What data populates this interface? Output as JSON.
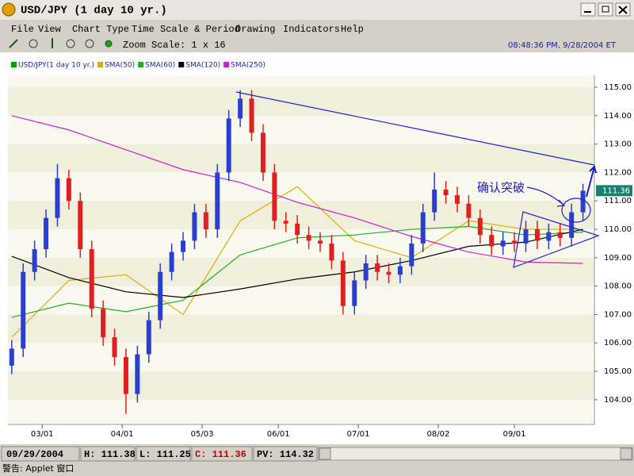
{
  "window": {
    "title": "USD/JPY (1 day  10 yr.)"
  },
  "menu": [
    "File",
    "View",
    "Chart Type",
    "Time Scale & Period",
    "Drawing",
    "Indicators",
    "Help"
  ],
  "toolbar": {
    "zoom": "Zoom Scale: 1 x 16",
    "time": "08:48:36 PM, 9/28/2004 ET"
  },
  "status": {
    "date": "09/29/2004",
    "high": "H: 111.38",
    "low": "L: 111.25",
    "close": "C: 111.36",
    "pv": "PV: 114.32"
  },
  "footer": "警告: Applet 窗口",
  "chart_data": {
    "type": "candlestick",
    "annotation": "确认突破",
    "last_price": 111.36,
    "candles": {
      "name": "USD/JPY(1 day  10 yr.)",
      "color": "#00a000",
      "up_color": "#2a3fd0",
      "down_color": "#e02020",
      "x": [
        1,
        4,
        7,
        10,
        13,
        16,
        19,
        22,
        25,
        28,
        31,
        34,
        37,
        40,
        43,
        46,
        49,
        52,
        55,
        58,
        61,
        64,
        67,
        70,
        73,
        76,
        79,
        82,
        85,
        88,
        91,
        94,
        97,
        100,
        103,
        106,
        109,
        112,
        115,
        118,
        121,
        124,
        127,
        130,
        133,
        136,
        139,
        142,
        145,
        148,
        151
      ],
      "open": [
        105.2,
        105.8,
        108.5,
        109.3,
        110.4,
        111.8,
        111.0,
        109.3,
        107.2,
        106.2,
        105.5,
        104.2,
        105.6,
        106.8,
        108.5,
        109.2,
        109.6,
        110.6,
        110.0,
        112.0,
        113.9,
        114.6,
        113.4,
        112.0,
        110.3,
        110.2,
        109.8,
        109.6,
        109.5,
        108.9,
        107.3,
        108.2,
        108.8,
        108.5,
        108.4,
        108.7,
        109.5,
        110.6,
        111.4,
        111.2,
        110.9,
        110.4,
        109.8,
        109.4,
        109.6,
        109.5,
        110.0,
        109.6,
        109.9,
        109.7,
        110.6
      ],
      "high": [
        106.1,
        108.8,
        109.6,
        110.7,
        112.3,
        112.1,
        111.3,
        109.6,
        107.5,
        106.5,
        105.8,
        105.9,
        107.1,
        108.8,
        109.5,
        109.9,
        110.9,
        110.9,
        112.3,
        114.2,
        114.9,
        114.9,
        113.7,
        112.3,
        110.6,
        110.5,
        110.1,
        109.9,
        109.8,
        109.2,
        108.5,
        109.1,
        109.1,
        108.8,
        109.0,
        109.8,
        110.9,
        112.0,
        111.7,
        111.5,
        111.2,
        110.7,
        110.1,
        109.9,
        109.9,
        110.3,
        110.3,
        110.2,
        110.2,
        110.9,
        111.6
      ],
      "low": [
        104.9,
        105.5,
        108.2,
        109.0,
        110.1,
        110.7,
        109.0,
        106.9,
        105.9,
        105.2,
        103.5,
        103.9,
        105.3,
        106.5,
        108.2,
        108.9,
        109.3,
        109.7,
        109.7,
        111.7,
        113.6,
        113.1,
        111.7,
        110.0,
        109.9,
        109.5,
        109.3,
        109.2,
        108.6,
        107.0,
        107.0,
        107.9,
        108.2,
        108.1,
        108.1,
        108.4,
        109.2,
        110.3,
        110.9,
        110.6,
        110.1,
        109.5,
        109.1,
        109.1,
        109.2,
        109.2,
        109.3,
        109.3,
        109.4,
        109.4,
        110.3
      ],
      "close": [
        105.8,
        108.5,
        109.3,
        110.4,
        111.8,
        111.0,
        109.3,
        107.2,
        106.2,
        105.5,
        104.2,
        105.6,
        106.8,
        108.5,
        109.2,
        109.6,
        110.6,
        110.0,
        112.0,
        113.9,
        114.6,
        113.4,
        112.0,
        110.3,
        110.2,
        109.8,
        109.6,
        109.5,
        108.9,
        107.3,
        108.2,
        108.8,
        108.5,
        108.4,
        108.7,
        109.5,
        110.6,
        111.4,
        111.2,
        110.9,
        110.4,
        109.8,
        109.4,
        109.6,
        109.5,
        110.0,
        109.6,
        109.9,
        109.7,
        110.6,
        111.36
      ]
    },
    "lines": [
      {
        "name": "SMA(50)",
        "color": "#d8b000",
        "x": [
          1,
          16,
          31,
          46,
          61,
          76,
          91,
          106,
          121,
          136,
          151
        ],
        "values": [
          106.2,
          108.2,
          108.4,
          107.0,
          110.3,
          111.5,
          109.6,
          109.0,
          110.3,
          110.0,
          110.0
        ]
      },
      {
        "name": "SMA(60)",
        "color": "#20b020",
        "x": [
          1,
          16,
          31,
          46,
          61,
          76,
          91,
          106,
          121,
          136,
          151
        ],
        "values": [
          106.9,
          107.4,
          107.1,
          107.5,
          109.1,
          109.7,
          109.8,
          110.0,
          110.1,
          109.8,
          109.9
        ]
      },
      {
        "name": "SMA(120)",
        "color": "#000000",
        "x": [
          1,
          16,
          31,
          46,
          61,
          76,
          91,
          106,
          121,
          136,
          151
        ],
        "values": [
          109.05,
          108.3,
          107.8,
          107.6,
          107.9,
          108.25,
          108.5,
          108.9,
          109.4,
          109.55,
          110.0
        ]
      },
      {
        "name": "SMA(250)",
        "color": "#cc20cc",
        "x": [
          1,
          16,
          31,
          46,
          61,
          76,
          91,
          106,
          121,
          136,
          151
        ],
        "values": [
          114.0,
          113.5,
          112.8,
          112.1,
          111.65,
          110.95,
          110.4,
          109.75,
          109.2,
          108.85,
          108.8
        ]
      }
    ],
    "xlim": [
      0,
      154
    ],
    "xticks": [
      {
        "value": 9,
        "label": "03/01"
      },
      {
        "value": 30,
        "label": "04/01"
      },
      {
        "value": 51,
        "label": "05/03"
      },
      {
        "value": 71,
        "label": "06/01"
      },
      {
        "value": 92,
        "label": "07/01"
      },
      {
        "value": 113,
        "label": "08/02"
      },
      {
        "value": 133,
        "label": "09/01"
      }
    ],
    "ylim": [
      103.13,
      115.42
    ],
    "yticks": [
      {
        "value": 104,
        "label": "104.00"
      },
      {
        "value": 105,
        "label": "105.00"
      },
      {
        "value": 106,
        "label": "106.00"
      },
      {
        "value": 107,
        "label": "107.00"
      },
      {
        "value": 108,
        "label": "108.00"
      },
      {
        "value": 109,
        "label": "109.00"
      },
      {
        "value": 110,
        "label": "110.00"
      },
      {
        "value": 111,
        "label": "111.00"
      },
      {
        "value": 112,
        "label": "112.00"
      },
      {
        "value": 113,
        "label": "113.00"
      },
      {
        "value": 114,
        "label": "114.00"
      },
      {
        "value": 115,
        "label": "115.00"
      }
    ],
    "grid": true
  }
}
